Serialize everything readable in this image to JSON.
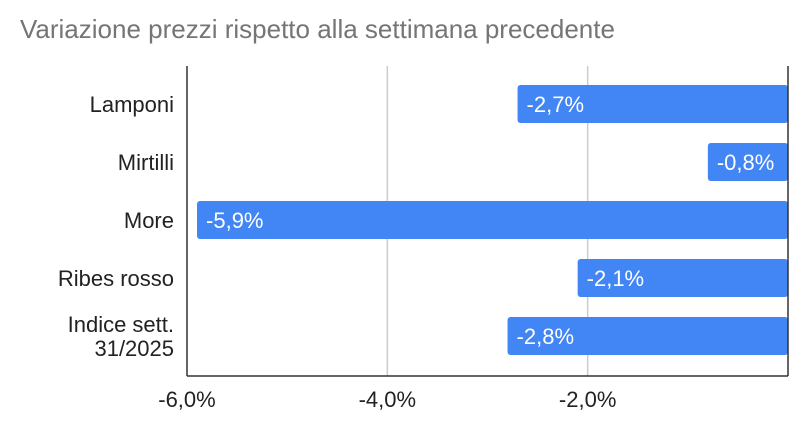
{
  "chart_data": {
    "type": "bar",
    "orientation": "horizontal",
    "title": "Variazione prezzi rispetto alla settimana precedente",
    "categories": [
      [
        "Lamponi"
      ],
      [
        "Mirtilli"
      ],
      [
        "More"
      ],
      [
        "Ribes rosso"
      ],
      [
        "Indice sett.",
        "31/2025"
      ]
    ],
    "values": [
      -2.7,
      -0.8,
      -5.9,
      -2.1,
      -2.8
    ],
    "data_labels": [
      "-2,7%",
      "-0,8%",
      "-5,9%",
      "-2,1%",
      "-2,8%"
    ],
    "xlim": [
      -6.0,
      0.0
    ],
    "x_ticks": [
      -6.0,
      -4.0,
      -2.0
    ],
    "x_tick_labels": [
      "-6,0%",
      "-4,0%",
      "-2,0%"
    ],
    "grid": true,
    "bar_color": "#4285f4",
    "grid_color": "#cccccc",
    "axis_color": "#333333"
  }
}
